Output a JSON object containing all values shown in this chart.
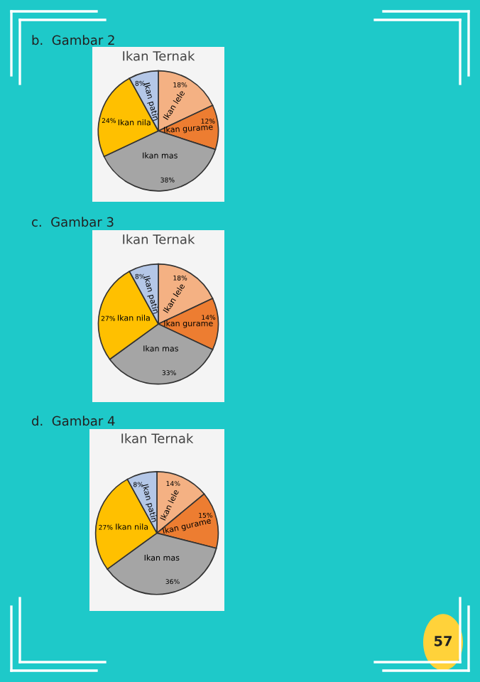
{
  "chart_data": [
    {
      "type": "pie",
      "title": "Ikan Ternak",
      "categories": [
        "Ikan lele",
        "Ikan gurame",
        "Ikan mas",
        "Ikan nila",
        "Ikan patin"
      ],
      "values": [
        18,
        12,
        38,
        24,
        8
      ],
      "value_labels": [
        "18%",
        "12%",
        "38%",
        "24%",
        "8%"
      ],
      "colors": [
        "#f4b183",
        "#ed7d31",
        "#a5a5a5",
        "#ffc000",
        "#b4c7e7"
      ],
      "annotations": [
        "b.  Gambar 2"
      ]
    },
    {
      "type": "pie",
      "title": "Ikan Ternak",
      "categories": [
        "Ikan lele",
        "Ikan gurame",
        "Ikan mas",
        "Ikan nila",
        "Ikan patin"
      ],
      "values": [
        18,
        14,
        33,
        27,
        8
      ],
      "value_labels": [
        "18%",
        "14%",
        "33%",
        "27%",
        "8%"
      ],
      "colors": [
        "#f4b183",
        "#ed7d31",
        "#a5a5a5",
        "#ffc000",
        "#b4c7e7"
      ],
      "annotations": [
        "c.  Gambar 3"
      ]
    },
    {
      "type": "pie",
      "title": "Ikan Ternak",
      "categories": [
        "Ikan lele",
        "Ikan gurame",
        "Ikan mas",
        "Ikan nila",
        "Ikan patin"
      ],
      "values": [
        14,
        15,
        36,
        27,
        8
      ],
      "value_labels": [
        "14%",
        "15%",
        "36%",
        "27%",
        "8%"
      ],
      "colors": [
        "#f4b183",
        "#ed7d31",
        "#a5a5a5",
        "#ffc000",
        "#b4c7e7"
      ],
      "annotations": [
        "d.  Gambar 4",
        "57"
      ]
    }
  ]
}
